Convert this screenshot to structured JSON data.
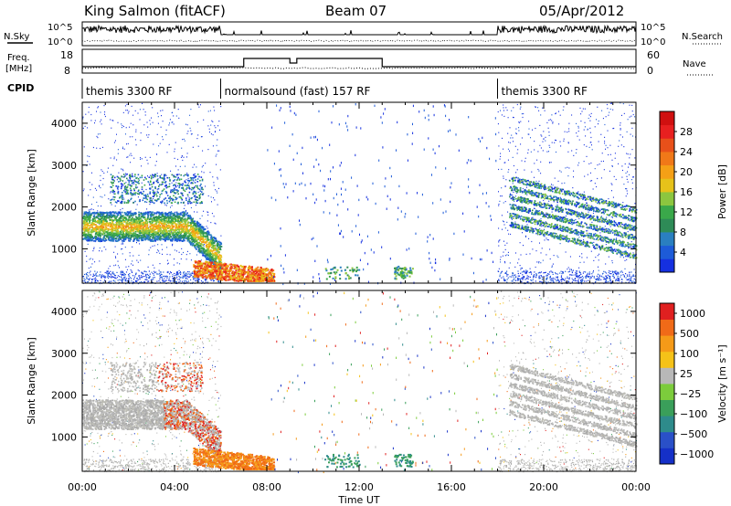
{
  "header": {
    "station": "King Salmon (fitACF)",
    "beam": "Beam 07",
    "date": "05/Apr/2012"
  },
  "strip_labels": {
    "nsky": "N.Sky",
    "nsky_ticks": [
      "10^5",
      "10^0"
    ],
    "nsearch": "N.Search",
    "nsearch_ticks": [
      "10^5",
      "10^0"
    ],
    "freq_line1": "Freq.",
    "freq_line2": "[MHz]",
    "freq_ticks": [
      "18",
      "8"
    ],
    "nave": "Nave",
    "nave_ticks": [
      "60",
      "0"
    ],
    "cpid": "CPID"
  },
  "cpid_segments": [
    {
      "label": "themis 3300 RF",
      "start_hour": 0
    },
    {
      "label": "normalsound (fast) 157 RF",
      "start_hour": 6
    },
    {
      "label": "themis 3300 RF",
      "start_hour": 18
    }
  ],
  "colorbars": {
    "power": {
      "label": "Power [dB]",
      "ticks": [
        "4",
        "8",
        "12",
        "16",
        "20",
        "24",
        "28"
      ],
      "colors": [
        "#1530e0",
        "#1d5bd8",
        "#2a7fc0",
        "#2e8b57",
        "#3aa84a",
        "#8cc63f",
        "#e6c21a",
        "#f5a016",
        "#f07818",
        "#e8501a",
        "#e82020",
        "#d01010"
      ]
    },
    "velocity": {
      "label": "Velocity [m s⁻¹]",
      "ticks": [
        "1000",
        "500",
        "100",
        "25",
        "−25",
        "−100",
        "−500",
        "−1000"
      ],
      "colors": [
        "#1530c8",
        "#2a50c8",
        "#2e8b8b",
        "#3a9f5a",
        "#7ccc3c",
        "#b8b8b8",
        "#f5c218",
        "#f59a18",
        "#f06a18",
        "#e02020"
      ]
    }
  },
  "chart_data": {
    "type": "heatmap",
    "panels": [
      {
        "name": "power",
        "ylabel": "Slant Range [km]",
        "ylim": [
          180,
          4500
        ],
        "yticks": [
          1000,
          2000,
          3000,
          4000
        ]
      },
      {
        "name": "velocity",
        "ylabel": "Slant Range [km]",
        "ylim": [
          180,
          4500
        ],
        "yticks": [
          1000,
          2000,
          3000,
          4000
        ]
      }
    ],
    "x_tick_labels": [
      "00:00",
      "04:00",
      "08:00",
      "12:00",
      "16:00",
      "20:00",
      "00:00"
    ],
    "xlabel": "Time UT",
    "xlim_hours": [
      0,
      24
    ],
    "freq_profile": [
      {
        "from": 0,
        "to": 7,
        "mhz": 10.5
      },
      {
        "from": 7,
        "to": 9,
        "mhz": 15
      },
      {
        "from": 9,
        "to": 9.3,
        "mhz": 12.5
      },
      {
        "from": 9.3,
        "to": 13,
        "mhz": 15
      },
      {
        "from": 13,
        "to": 24,
        "mhz": 10.5
      }
    ]
  }
}
